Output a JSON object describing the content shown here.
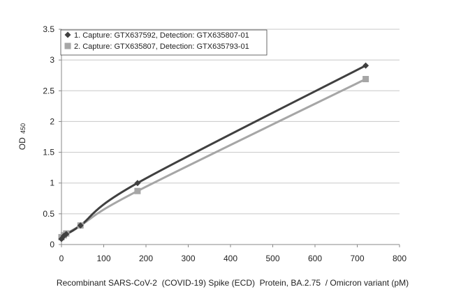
{
  "chart_data": {
    "type": "line",
    "title": "",
    "xlabel": "Recombinant SARS-CoV-2  (COVID-19) Spike (ECD)  Protein, BA.2.75  / Omicron variant (pM)",
    "ylabel": "OD",
    "ylabel_subscript": "450",
    "xlim": [
      0,
      800
    ],
    "ylim": [
      0,
      3.5
    ],
    "x_ticks": [
      0,
      100,
      200,
      300,
      400,
      500,
      600,
      700,
      800
    ],
    "y_ticks": [
      "0",
      "0.5",
      "1",
      "1.5",
      "2",
      "2.5",
      "3",
      "3.5"
    ],
    "grid": "horizontal",
    "legend_position": "top-left",
    "series": [
      {
        "name": "1. Capture: GTX637592, Detection: GTX635807-01",
        "color": "#404040",
        "marker": "diamond",
        "x": [
          0,
          5.6,
          11.3,
          45,
          180,
          720
        ],
        "y": [
          0.09,
          0.14,
          0.17,
          0.31,
          1.0,
          2.91
        ]
      },
      {
        "name": "2. Capture: GTX635807, Detection: GTX635793-01",
        "color": "#a6a6a6",
        "marker": "square",
        "x": [
          0,
          5.6,
          11.3,
          45,
          180,
          720
        ],
        "y": [
          0.12,
          0.15,
          0.18,
          0.31,
          0.87,
          2.69
        ]
      }
    ]
  }
}
